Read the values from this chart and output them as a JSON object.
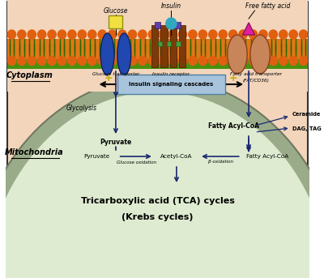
{
  "fig_width": 4.0,
  "fig_height": 3.43,
  "dpi": 100,
  "bg_peach": "#f2d5bb",
  "bg_green": "#deebd0",
  "border_color": "#333333",
  "membrane_orange": "#e07818",
  "membrane_green": "#4a9010",
  "head_orange": "#e06010",
  "tail_green": "#2a6800",
  "glucose_transporter_color": "#2048b0",
  "insulin_receptor_color": "#7b3a0a",
  "insulin_receptor_purple": "#6040b0",
  "fatty_transporter_color": "#c8855a",
  "glucose_yellow": "#f0e040",
  "insulin_cyan": "#30a8c0",
  "ffa_magenta": "#e020a0",
  "arrow_dark": "#1a2870",
  "isc_box_fill": "#a8c4dc",
  "isc_box_edge": "#5080a0",
  "mito_band_color": "#9aab8a",
  "mito_fill": "#deebd0",
  "cytoplasm_label": "Cytoplasm",
  "mitochondria_label": "Mitochondria",
  "title_tca": "Tricarboxylic acid (TCA) cycles",
  "title_krebs": "(Krebs cycles)"
}
